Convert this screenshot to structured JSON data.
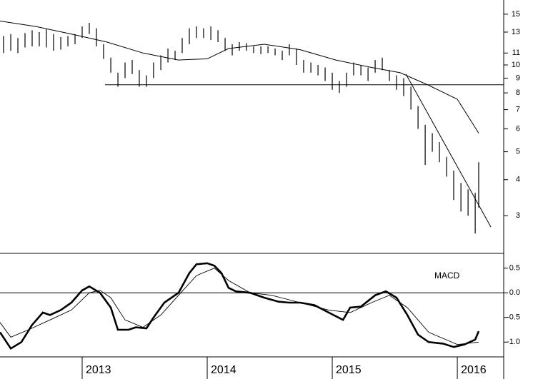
{
  "chart_data": [
    {
      "type": "range_bar",
      "log_scale": true,
      "color": "#000000",
      "xlim": [
        2012.343,
        2016.371
      ],
      "ylim": [
        2.22,
        16.8
      ],
      "yticks": [
        3,
        4,
        5,
        6,
        7,
        8,
        9,
        10,
        11,
        13,
        15
      ],
      "bars": {
        "x": [
          2012.371,
          2012.429,
          2012.486,
          2012.543,
          2012.6,
          2012.657,
          2012.714,
          2012.771,
          2012.829,
          2012.886,
          2012.943,
          2013.0,
          2013.057,
          2013.114,
          2013.171,
          2013.229,
          2013.286,
          2013.343,
          2013.4,
          2013.457,
          2013.514,
          2013.571,
          2013.629,
          2013.686,
          2013.743,
          2013.8,
          2013.857,
          2013.914,
          2013.971,
          2014.029,
          2014.086,
          2014.143,
          2014.2,
          2014.257,
          2014.314,
          2014.371,
          2014.429,
          2014.486,
          2014.543,
          2014.6,
          2014.657,
          2014.714,
          2014.771,
          2014.829,
          2014.886,
          2014.943,
          2015.0,
          2015.057,
          2015.114,
          2015.171,
          2015.229,
          2015.286,
          2015.343,
          2015.4,
          2015.457,
          2015.514,
          2015.571,
          2015.629,
          2015.686,
          2015.743,
          2015.8,
          2015.857,
          2015.914,
          2015.971,
          2016.029,
          2016.086,
          2016.143,
          2016.171
        ],
        "high": [
          12.6,
          12.8,
          12.4,
          12.9,
          13.2,
          13.0,
          13.3,
          12.8,
          12.5,
          12.6,
          12.8,
          13.6,
          14.0,
          13.4,
          11.8,
          10.6,
          9.4,
          10.2,
          10.4,
          9.6,
          9.2,
          10.2,
          10.8,
          11.4,
          11.2,
          12.4,
          13.4,
          13.6,
          13.4,
          13.6,
          13.2,
          12.4,
          11.8,
          12.0,
          11.9,
          11.6,
          11.6,
          11.6,
          11.4,
          11.2,
          11.8,
          11.4,
          10.4,
          10.2,
          10.0,
          9.8,
          9.4,
          8.8,
          9.4,
          10.2,
          10.0,
          9.8,
          10.4,
          10.6,
          9.6,
          9.2,
          9.0,
          8.4,
          7.2,
          6.2,
          5.8,
          5.4,
          4.8,
          4.3,
          3.9,
          3.7,
          3.6,
          4.6
        ],
        "low": [
          11.0,
          11.2,
          11.0,
          11.5,
          11.6,
          11.6,
          11.5,
          11.2,
          11.3,
          11.6,
          11.8,
          12.4,
          12.8,
          11.6,
          10.5,
          9.4,
          8.4,
          9.0,
          9.3,
          8.4,
          8.4,
          9.0,
          9.6,
          10.2,
          10.4,
          11.0,
          11.8,
          12.4,
          12.4,
          12.2,
          12.0,
          11.2,
          10.8,
          11.2,
          11.2,
          11.0,
          10.9,
          11.0,
          10.8,
          10.4,
          10.8,
          10.0,
          9.4,
          9.4,
          9.2,
          8.8,
          8.2,
          8.0,
          8.4,
          9.2,
          9.2,
          8.8,
          9.4,
          9.6,
          8.8,
          8.2,
          7.8,
          7.0,
          6.0,
          4.5,
          5.0,
          4.6,
          4.1,
          3.4,
          3.1,
          3.0,
          2.6,
          3.2
        ]
      },
      "lines": [
        {
          "x": [
            2012.343,
            2012.629,
            2012.914,
            2013.2,
            2013.486,
            2013.771,
            2014.0,
            2014.171,
            2014.457,
            2014.743,
            2015.029,
            2015.314,
            2015.543,
            2015.771,
            2016.0,
            2016.171
          ],
          "values": [
            14.2,
            13.6,
            12.8,
            12.0,
            11.0,
            10.4,
            10.5,
            11.4,
            11.8,
            11.3,
            10.4,
            9.8,
            9.4,
            8.5,
            7.6,
            5.8
          ]
        },
        {
          "x": [
            2013.183,
            2016.371
          ],
          "values": [
            8.54,
            8.54
          ]
        },
        {
          "x": [
            2015.589,
            2016.269
          ],
          "values": [
            9.3,
            2.74
          ]
        }
      ]
    },
    {
      "type": "line",
      "label": "MACD",
      "color": "#000000",
      "xlim": [
        2012.343,
        2016.371
      ],
      "ylim": [
        -1.3,
        0.8
      ],
      "xticks": [
        2013,
        2014,
        2015,
        2016
      ],
      "yticks": [
        {
          "value": -1,
          "label": "-1.0"
        },
        -0.5,
        {
          "value": 0,
          "label": "0.0"
        },
        0.5
      ],
      "series": [
        {
          "x": [
            2012.343,
            2012.429,
            2012.514,
            2012.6,
            2012.686,
            2012.743,
            2012.829,
            2012.914,
            2013.0,
            2013.057,
            2013.143,
            2013.229,
            2013.286,
            2013.371,
            2013.429,
            2013.514,
            2013.571,
            2013.657,
            2013.771,
            2013.857,
            2013.914,
            2014.0,
            2014.057,
            2014.114,
            2014.171,
            2014.229,
            2014.343,
            2014.457,
            2014.571,
            2014.657,
            2014.743,
            2014.857,
            2014.971,
            2015.086,
            2015.143,
            2015.229,
            2015.343,
            2015.429,
            2015.514,
            2015.6,
            2015.686,
            2015.771,
            2015.886,
            2015.971,
            2016.057,
            2016.143,
            2016.171
          ],
          "values": [
            -0.8,
            -1.13,
            -1.0,
            -0.65,
            -0.4,
            -0.45,
            -0.35,
            -0.2,
            0.05,
            0.13,
            0.0,
            -0.3,
            -0.75,
            -0.75,
            -0.7,
            -0.72,
            -0.5,
            -0.2,
            0.0,
            0.4,
            0.58,
            0.6,
            0.55,
            0.4,
            0.1,
            0.03,
            0.0,
            -0.1,
            -0.18,
            -0.2,
            -0.2,
            -0.25,
            -0.4,
            -0.55,
            -0.3,
            -0.28,
            -0.05,
            0.03,
            -0.1,
            -0.45,
            -0.85,
            -1.0,
            -1.03,
            -1.1,
            -1.05,
            -0.95,
            -0.78
          ]
        },
        {
          "x": [
            2012.343,
            2012.429,
            2012.571,
            2012.743,
            2012.914,
            2013.057,
            2013.143,
            2013.229,
            2013.343,
            2013.486,
            2013.629,
            2013.771,
            2013.914,
            2014.057,
            2014.171,
            2014.343,
            2014.514,
            2014.743,
            2014.971,
            2015.143,
            2015.314,
            2015.457,
            2015.6,
            2015.771,
            2016.0,
            2016.171
          ],
          "values": [
            -0.6,
            -0.9,
            -0.75,
            -0.55,
            -0.35,
            0.0,
            0.05,
            -0.1,
            -0.55,
            -0.7,
            -0.45,
            -0.05,
            0.35,
            0.5,
            0.25,
            0.0,
            -0.05,
            -0.2,
            -0.35,
            -0.4,
            -0.2,
            -0.05,
            -0.3,
            -0.8,
            -1.05,
            -1.0
          ]
        }
      ]
    }
  ]
}
